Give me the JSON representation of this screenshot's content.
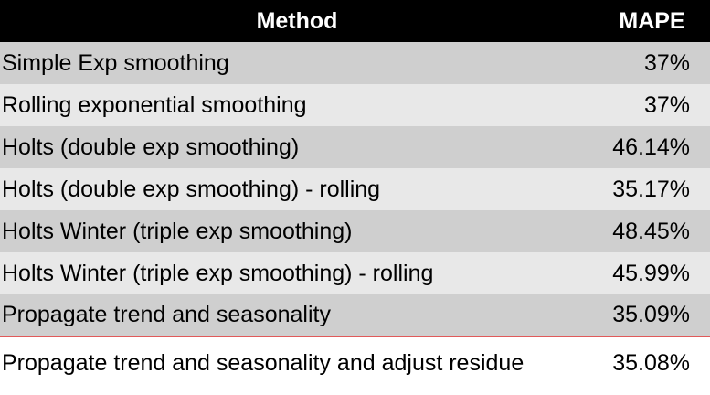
{
  "table": {
    "headers": {
      "method": "Method",
      "mape": "MAPE"
    },
    "rows": [
      {
        "method": "Simple Exp smoothing",
        "mape": "37%"
      },
      {
        "method": "Rolling exponential smoothing",
        "mape": "37%"
      },
      {
        "method": "Holts (double exp smoothing)",
        "mape": "46.14%"
      },
      {
        "method": "Holts (double exp smoothing) - rolling",
        "mape": "35.17%"
      },
      {
        "method": "Holts Winter (triple exp smoothing)",
        "mape": "48.45%"
      },
      {
        "method": "Holts Winter (triple exp smoothing) - rolling",
        "mape": "45.99%"
      },
      {
        "method": "Propagate trend and seasonality",
        "mape": "35.09%"
      },
      {
        "method": "Propagate trend and seasonality and adjust residue",
        "mape": "35.08%"
      }
    ]
  },
  "colors": {
    "header_bg": "#000000",
    "header_text": "#ffffff",
    "row_dark": "#cfcfcf",
    "row_light": "#e8e8e8",
    "separator": "#e05a5a"
  }
}
